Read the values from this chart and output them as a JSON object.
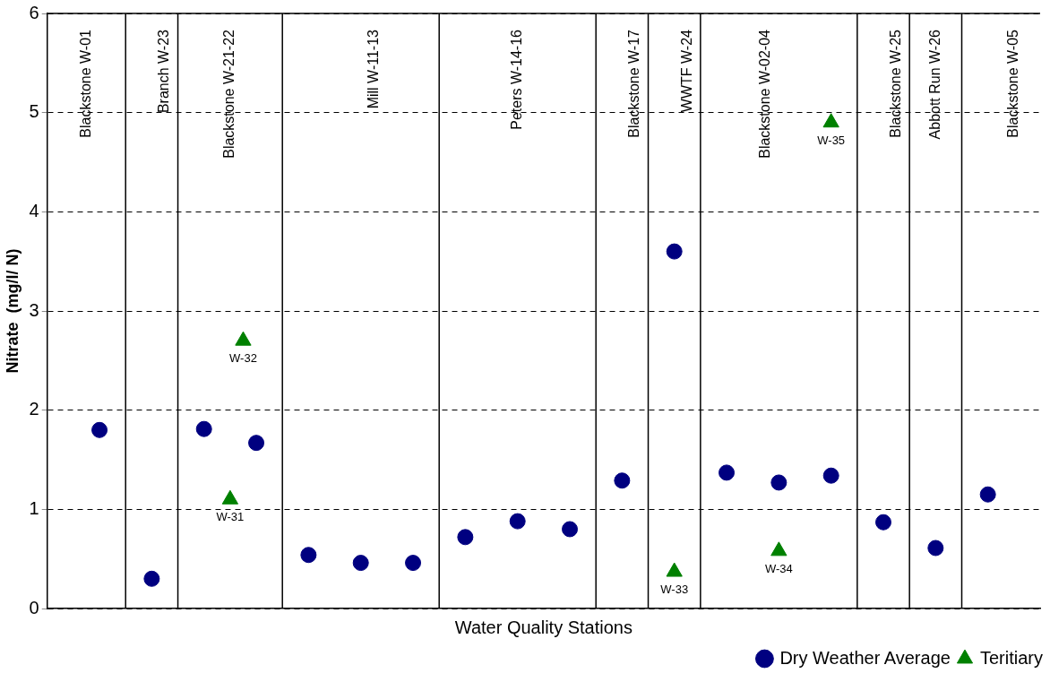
{
  "chart_data": {
    "type": "scatter",
    "xlabel": "Water Quality Stations",
    "ylabel": "Nitrate  (mg/l/ N)",
    "categories": [
      null,
      null,
      null,
      "Blackstone W-01",
      null,
      null,
      null,
      null,
      null,
      "Branch W-23",
      null,
      null,
      null,
      null,
      "Blackstone W-21-22",
      null,
      null,
      null,
      null,
      null,
      null,
      null,
      null,
      null,
      null,
      "Mill W-11-13",
      null,
      null,
      null,
      null,
      null,
      null,
      null,
      null,
      null,
      null,
      "Peters W-14-16",
      null,
      null,
      null,
      null,
      null,
      null,
      null,
      null,
      "Blackstone W-17",
      null,
      null,
      null,
      "WWTF W-24",
      null,
      null,
      null,
      null,
      null,
      "Blackstone W-02-04",
      null,
      null,
      null,
      null,
      null,
      null,
      null,
      null,
      null,
      "Blackstone W-25",
      null,
      null,
      "Abbott Run W-26",
      null,
      null,
      null,
      null,
      null,
      "Blackstone W-05",
      null,
      null
    ],
    "ylim": [
      0,
      6
    ],
    "yticks": [
      0,
      1,
      2,
      3,
      4,
      5,
      6
    ],
    "grid": "y",
    "line_style": "dashed",
    "legend": "bottom right",
    "series": [
      {
        "name": "Dry Weather Average",
        "color": "#000080",
        "marker": "circle",
        "values": [
          null,
          null,
          null,
          null,
          1.8,
          null,
          null,
          null,
          0.3,
          null,
          null,
          null,
          1.81,
          null,
          null,
          null,
          1.67,
          null,
          null,
          null,
          0.54,
          null,
          null,
          null,
          0.46,
          null,
          null,
          null,
          0.46,
          null,
          null,
          null,
          0.72,
          null,
          null,
          null,
          0.88,
          null,
          null,
          null,
          0.8,
          null,
          null,
          null,
          1.29,
          null,
          null,
          null,
          3.6,
          null,
          null,
          null,
          1.37,
          null,
          null,
          null,
          1.27,
          null,
          null,
          null,
          1.34,
          null,
          null,
          null,
          0.87,
          null,
          null,
          null,
          0.61,
          null,
          null,
          null,
          1.15,
          null,
          null,
          null,
          null
        ]
      },
      {
        "name": "Teritiary",
        "color": "#008000",
        "marker": "triangle",
        "values": [
          null,
          null,
          null,
          null,
          null,
          null,
          null,
          null,
          null,
          null,
          null,
          null,
          null,
          null,
          1.1,
          2.7,
          null,
          null,
          null,
          null,
          null,
          null,
          null,
          null,
          null,
          null,
          null,
          null,
          null,
          null,
          null,
          null,
          null,
          null,
          null,
          null,
          null,
          null,
          null,
          null,
          null,
          null,
          null,
          null,
          null,
          null,
          null,
          null,
          0.37,
          null,
          null,
          null,
          null,
          null,
          null,
          null,
          0.58,
          null,
          null,
          null,
          4.9,
          null,
          null,
          null,
          null,
          null,
          null,
          null,
          null,
          null,
          null,
          null,
          null,
          null,
          null,
          null,
          null
        ]
      }
    ],
    "annotations": [
      "W-31",
      "W-32",
      "W-33",
      "W-34",
      "W-35"
    ]
  }
}
